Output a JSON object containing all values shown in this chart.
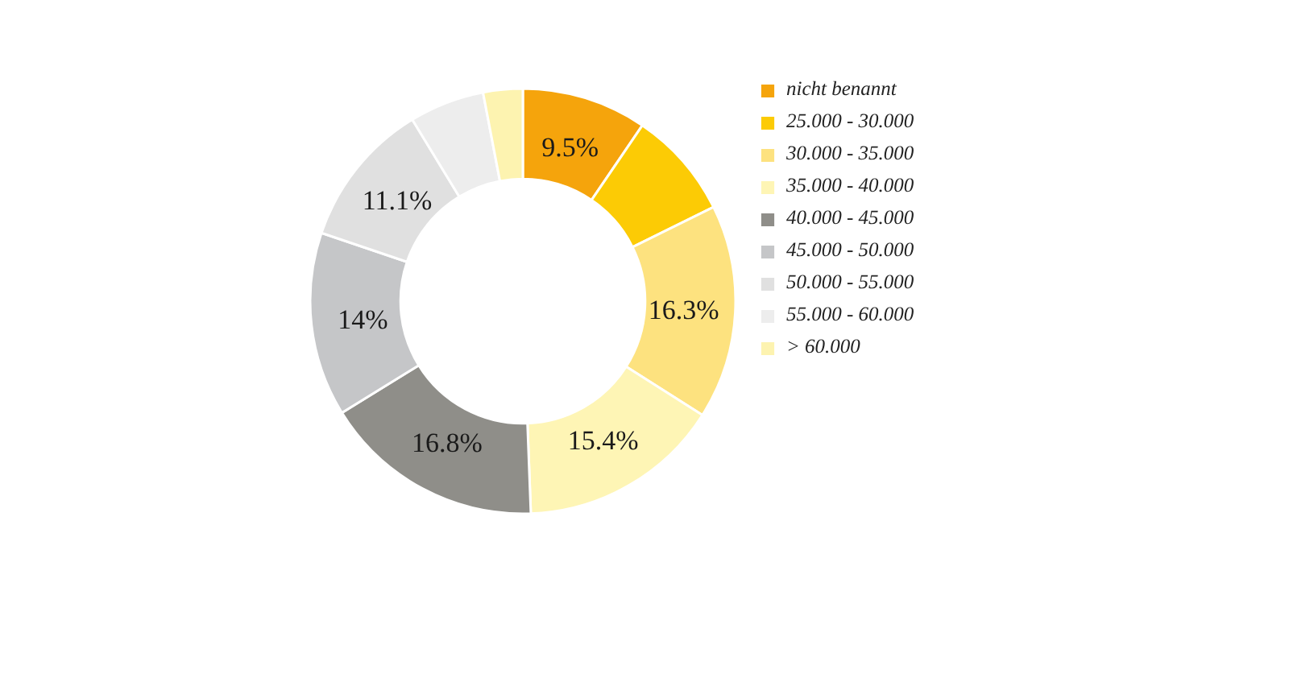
{
  "chart_data": {
    "type": "donut",
    "categories": [
      "nicht benannt",
      "25.000 - 30.000",
      "30.000 - 35.000",
      "35.000 - 40.000",
      "40.000 - 45.000",
      "45.000 - 50.000",
      "50.000 - 55.000",
      "55.000 - 60.000",
      "> 60.000"
    ],
    "values": [
      9.5,
      8.2,
      16.3,
      15.4,
      16.8,
      14,
      11.1,
      5.7,
      3.0
    ],
    "colors": [
      "#f5a40c",
      "#fccb05",
      "#fde27f",
      "#fef5b5",
      "#8f8e89",
      "#c5c6c8",
      "#e0e0e0",
      "#ededed",
      "#fdf3b0"
    ],
    "value_labels": [
      "9.5%",
      null,
      "16.3%",
      "15.4%",
      "16.8%",
      "14%",
      "11.1%",
      null,
      null
    ],
    "legend": "right"
  }
}
